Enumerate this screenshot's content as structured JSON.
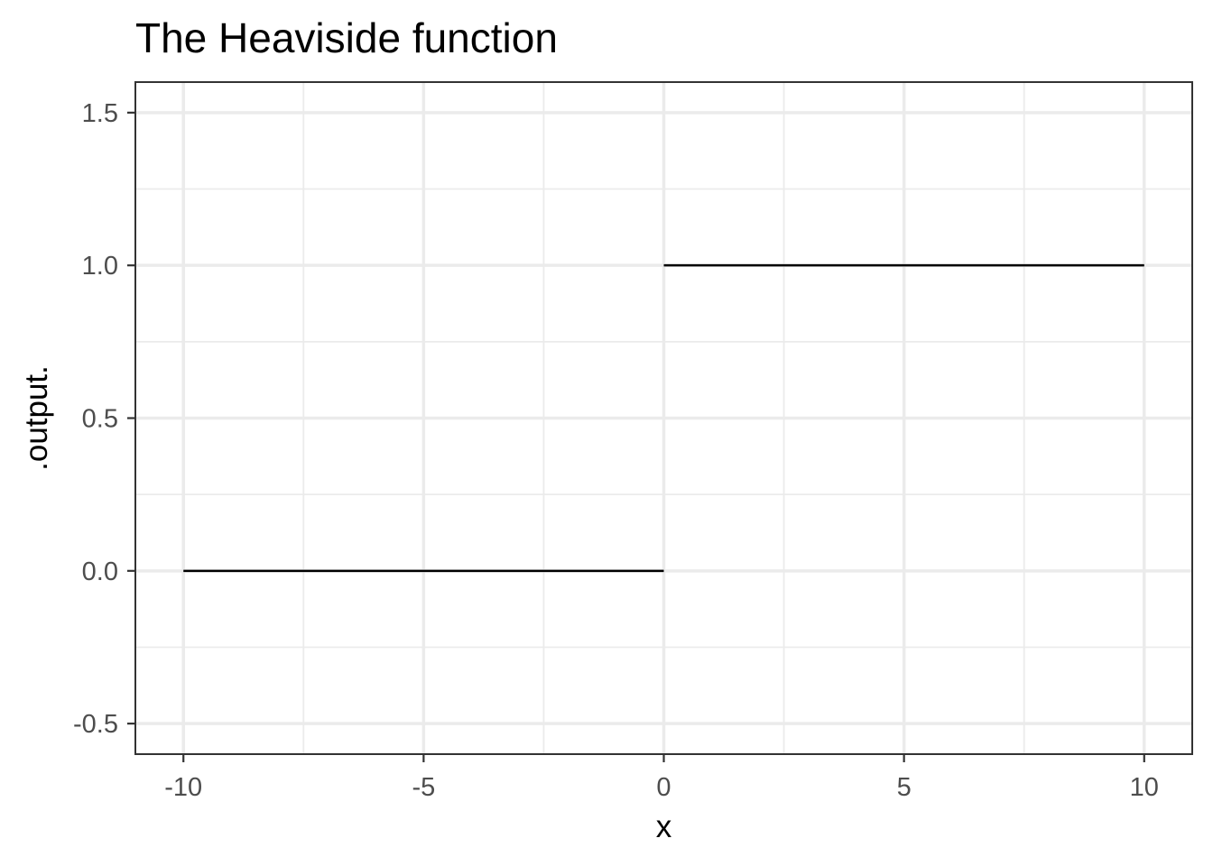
{
  "chart_data": {
    "type": "line",
    "title": "The Heaviside function",
    "xlabel": "x",
    "ylabel": ".output.",
    "xlim": [
      -11,
      11
    ],
    "ylim": [
      -0.6,
      1.6
    ],
    "x_ticks": [
      -10,
      -5,
      0,
      5,
      10
    ],
    "x_tick_labels": [
      "-10",
      "-5",
      "0",
      "5",
      "10"
    ],
    "x_minor_ticks": [
      -7.5,
      -2.5,
      2.5,
      7.5
    ],
    "y_ticks": [
      -0.5,
      0,
      0.5,
      1,
      1.5
    ],
    "y_tick_labels": [
      "-0.5",
      "0.0",
      "0.5",
      "1.0",
      "1.5"
    ],
    "y_minor_ticks": [
      -0.25,
      0.25,
      0.75,
      1.25
    ],
    "grid": true,
    "legend": "none",
    "line_color": "#000000",
    "segments": [
      {
        "x": [
          -10,
          0
        ],
        "y": [
          0,
          0
        ]
      },
      {
        "x": [
          0,
          10
        ],
        "y": [
          1,
          1
        ]
      }
    ]
  }
}
